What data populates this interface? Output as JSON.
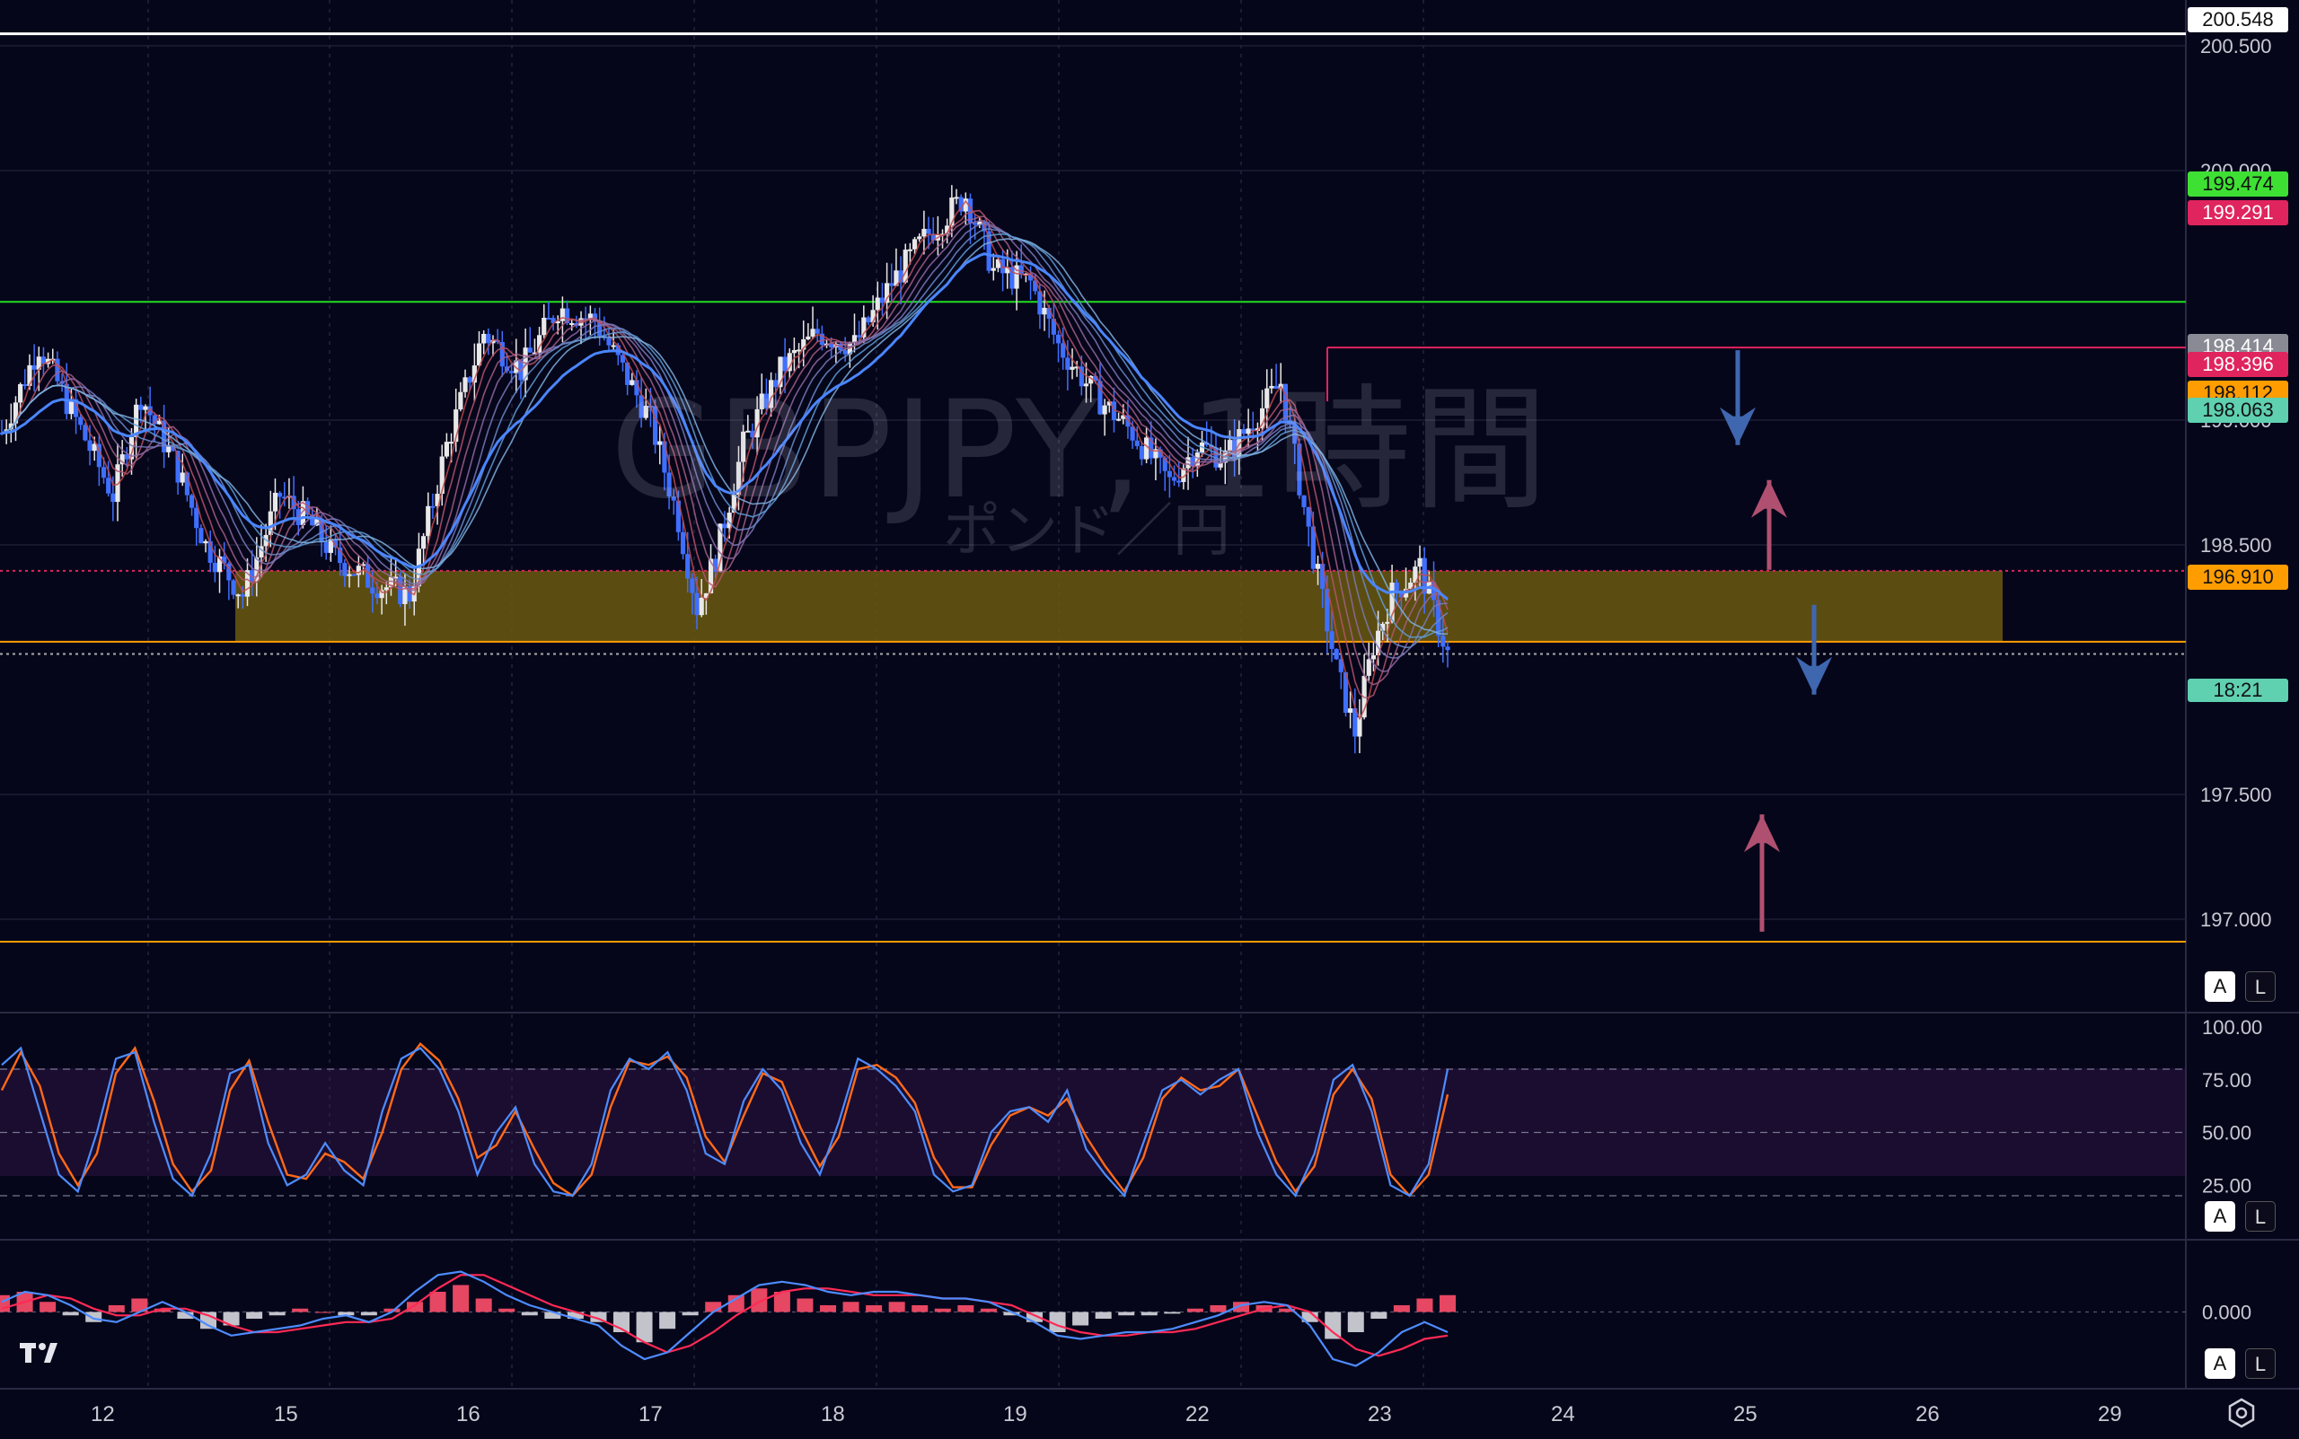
{
  "watermark": {
    "symbol": "GBPJPY, 1時間",
    "name": "ポンド／円"
  },
  "colors": {
    "background": "#06061a",
    "up_candle": "#e8e8e8",
    "down_candle": "#3f6fff",
    "zone": "#6b5a10",
    "green_line": "#22dd22",
    "pink_line": "#e0245e",
    "orange_line": "#ff9d00",
    "stoch_k": "#4d8cff",
    "stoch_d": "#ff6a1a",
    "macd_line": "#4d8cff",
    "signal_line": "#ff2a55",
    "hist_pos": "#ff4f6a",
    "hist_neg": "#d8d8e0"
  },
  "price_axis": {
    "ticks": [
      "200.500",
      "200.000",
      "199.000",
      "198.500",
      "197.500",
      "197.000"
    ]
  },
  "price_labels": [
    {
      "text": "200.548",
      "bg": "#ffffff",
      "fg": "#111111"
    },
    {
      "text": "199.474",
      "bg": "#3ee034",
      "fg": "#111111"
    },
    {
      "text": "199.291",
      "bg": "#e0245e",
      "fg": "#ffffff"
    },
    {
      "text": "198.414",
      "bg": "#8a8a94",
      "fg": "#ffffff"
    },
    {
      "text": "198.396",
      "bg": "#e0245e",
      "fg": "#ffffff"
    },
    {
      "text": "198.112",
      "bg": "#ff9d00",
      "fg": "#111111"
    },
    {
      "text": "198.063",
      "bg": "#5fd0b0",
      "fg": "#111111"
    },
    {
      "text": "196.910",
      "bg": "#ff9d00",
      "fg": "#111111"
    }
  ],
  "countdown": "18:21",
  "stoch_axis": {
    "ticks": [
      "100.00",
      "75.00",
      "50.00",
      "25.00"
    ]
  },
  "macd_axis": {
    "ticks": [
      "0.000"
    ]
  },
  "date_axis": {
    "labels": [
      "12",
      "15",
      "16",
      "17",
      "18",
      "19",
      "22",
      "23",
      "24",
      "25",
      "26",
      "29"
    ]
  },
  "scale_buttons": {
    "auto": "A",
    "log": "L"
  },
  "chart_data": {
    "type": "candlestick",
    "title": "GBPJPY, 1時間",
    "subtitle": "ポンド／円",
    "x_labels": [
      "12",
      "15",
      "16",
      "17",
      "18",
      "19",
      "22",
      "23",
      "24",
      "25",
      "26",
      "29"
    ],
    "ylim": [
      196.6,
      200.62
    ],
    "horizontal_lines": [
      {
        "price": 200.548,
        "color": "#ffffff"
      },
      {
        "price": 199.474,
        "color": "#22dd22"
      },
      {
        "price": 199.291,
        "color": "#e0245e",
        "from_day": "22"
      },
      {
        "price": 198.396,
        "color": "#e0245e",
        "style": "dotted"
      },
      {
        "price": 198.112,
        "color": "#ff9d00"
      },
      {
        "price": 198.063,
        "color": "#aaaaaa",
        "style": "dotted"
      },
      {
        "price": 196.91,
        "color": "#ff9d00"
      }
    ],
    "zone": {
      "top": 198.396,
      "bottom": 198.112,
      "from_day": "12",
      "to_day": "26"
    },
    "price_path": [
      [
        0,
        198.95
      ],
      [
        8,
        199.3
      ],
      [
        16,
        199.0
      ],
      [
        24,
        198.7
      ],
      [
        30,
        199.1
      ],
      [
        38,
        198.8
      ],
      [
        44,
        198.5
      ],
      [
        52,
        198.3
      ],
      [
        60,
        198.7
      ],
      [
        66,
        198.6
      ],
      [
        72,
        198.45
      ],
      [
        80,
        198.35
      ],
      [
        88,
        198.3
      ],
      [
        96,
        198.9
      ],
      [
        104,
        199.35
      ],
      [
        112,
        199.2
      ],
      [
        120,
        199.45
      ],
      [
        128,
        199.4
      ],
      [
        134,
        199.2
      ],
      [
        140,
        199.0
      ],
      [
        146,
        198.6
      ],
      [
        150,
        198.25
      ],
      [
        154,
        198.45
      ],
      [
        160,
        198.9
      ],
      [
        168,
        199.2
      ],
      [
        176,
        199.35
      ],
      [
        184,
        199.3
      ],
      [
        192,
        199.55
      ],
      [
        200,
        199.75
      ],
      [
        208,
        199.9
      ],
      [
        214,
        199.6
      ],
      [
        222,
        199.55
      ],
      [
        228,
        199.3
      ],
      [
        236,
        199.1
      ],
      [
        244,
        198.95
      ],
      [
        252,
        198.75
      ],
      [
        258,
        198.9
      ],
      [
        264,
        198.85
      ],
      [
        270,
        199.0
      ],
      [
        276,
        199.15
      ],
      [
        282,
        198.55
      ],
      [
        288,
        198.0
      ],
      [
        292,
        197.75
      ],
      [
        296,
        198.1
      ],
      [
        300,
        198.3
      ],
      [
        306,
        198.41
      ],
      [
        312,
        198.063
      ]
    ],
    "price_path_x_unit": "hourly bars",
    "stochastic": {
      "ylim": [
        0,
        100
      ],
      "levels": [
        80,
        50,
        20
      ],
      "k": [
        82,
        90,
        60,
        30,
        22,
        50,
        85,
        88,
        55,
        28,
        20,
        40,
        78,
        82,
        45,
        25,
        30,
        45,
        32,
        25,
        60,
        85,
        90,
        80,
        60,
        30,
        50,
        62,
        35,
        22,
        20,
        35,
        70,
        85,
        80,
        88,
        70,
        40,
        35,
        65,
        80,
        70,
        45,
        30,
        55,
        85,
        80,
        72,
        60,
        30,
        22,
        25,
        50,
        60,
        62,
        55,
        70,
        42,
        30,
        20,
        45,
        70,
        75,
        68,
        75,
        80,
        50,
        30,
        20,
        40,
        75,
        82,
        60,
        25,
        20,
        35,
        80
      ],
      "d": [
        70,
        88,
        72,
        40,
        25,
        40,
        78,
        90,
        65,
        35,
        22,
        32,
        70,
        84,
        55,
        30,
        28,
        40,
        36,
        28,
        50,
        80,
        92,
        84,
        66,
        38,
        44,
        60,
        42,
        26,
        20,
        30,
        62,
        84,
        82,
        86,
        76,
        48,
        36,
        58,
        78,
        74,
        52,
        34,
        48,
        80,
        82,
        76,
        64,
        38,
        24,
        24,
        44,
        58,
        62,
        58,
        66,
        48,
        34,
        22,
        38,
        66,
        76,
        70,
        72,
        80,
        58,
        36,
        22,
        34,
        68,
        80,
        66,
        30,
        20,
        30,
        68
      ]
    },
    "macd": {
      "zero_line": 0,
      "hist": [
        0.5,
        0.6,
        0.3,
        -0.1,
        -0.3,
        0.2,
        0.4,
        0.1,
        -0.2,
        -0.5,
        -0.4,
        -0.2,
        -0.1,
        0.1,
        0.0,
        -0.1,
        -0.1,
        0.1,
        0.3,
        0.6,
        0.8,
        0.4,
        0.1,
        -0.1,
        -0.2,
        -0.2,
        -0.3,
        -0.6,
        -0.9,
        -0.5,
        -0.1,
        0.3,
        0.5,
        0.7,
        0.6,
        0.4,
        0.2,
        0.3,
        0.2,
        0.3,
        0.2,
        0.1,
        0.2,
        0.1,
        -0.1,
        -0.3,
        -0.6,
        -0.4,
        -0.2,
        -0.1,
        -0.1,
        -0.05,
        0.1,
        0.2,
        0.3,
        0.2,
        0.1,
        -0.3,
        -0.8,
        -0.6,
        -0.2,
        0.2,
        0.4,
        0.5
      ],
      "macd": [
        0.3,
        0.6,
        0.5,
        0.2,
        -0.2,
        -0.3,
        0.0,
        0.3,
        0.0,
        -0.4,
        -0.7,
        -0.6,
        -0.5,
        -0.4,
        -0.2,
        -0.1,
        -0.3,
        0.0,
        0.6,
        1.1,
        1.2,
        0.9,
        0.5,
        0.2,
        0.0,
        -0.2,
        -0.4,
        -1.0,
        -1.4,
        -1.2,
        -0.6,
        0.0,
        0.4,
        0.8,
        0.9,
        0.8,
        0.6,
        0.5,
        0.6,
        0.6,
        0.5,
        0.4,
        0.4,
        0.3,
        0.0,
        -0.3,
        -0.7,
        -0.8,
        -0.7,
        -0.6,
        -0.6,
        -0.5,
        -0.3,
        -0.1,
        0.2,
        0.3,
        0.2,
        -0.4,
        -1.4,
        -1.6,
        -1.2,
        -0.6,
        -0.3,
        -0.6
      ],
      "signal": [
        0.1,
        0.3,
        0.5,
        0.4,
        0.1,
        -0.1,
        -0.1,
        0.1,
        0.1,
        -0.1,
        -0.4,
        -0.6,
        -0.6,
        -0.5,
        -0.4,
        -0.3,
        -0.3,
        -0.2,
        0.2,
        0.7,
        1.1,
        1.1,
        0.8,
        0.5,
        0.2,
        0.0,
        -0.2,
        -0.5,
        -0.9,
        -1.2,
        -1.0,
        -0.6,
        -0.1,
        0.3,
        0.6,
        0.7,
        0.7,
        0.6,
        0.5,
        0.5,
        0.5,
        0.4,
        0.4,
        0.3,
        0.2,
        -0.1,
        -0.4,
        -0.6,
        -0.7,
        -0.7,
        -0.6,
        -0.6,
        -0.5,
        -0.3,
        -0.1,
        0.1,
        0.2,
        0.0,
        -0.6,
        -1.1,
        -1.3,
        -1.1,
        -0.8,
        -0.7
      ],
      "ylim": [
        -2.2,
        1.8
      ]
    },
    "arrows": [
      {
        "direction": "down",
        "color": "#3f67b0",
        "from": 199.28,
        "to": 198.9,
        "day": "25"
      },
      {
        "direction": "up",
        "color": "#b05070",
        "from": 198.4,
        "to": 198.76,
        "day": "25"
      },
      {
        "direction": "down",
        "color": "#3f67b0",
        "from": 198.26,
        "to": 197.9,
        "day": "25"
      },
      {
        "direction": "up",
        "color": "#b05070",
        "from": 196.95,
        "to": 197.42,
        "day": "25"
      }
    ]
  }
}
